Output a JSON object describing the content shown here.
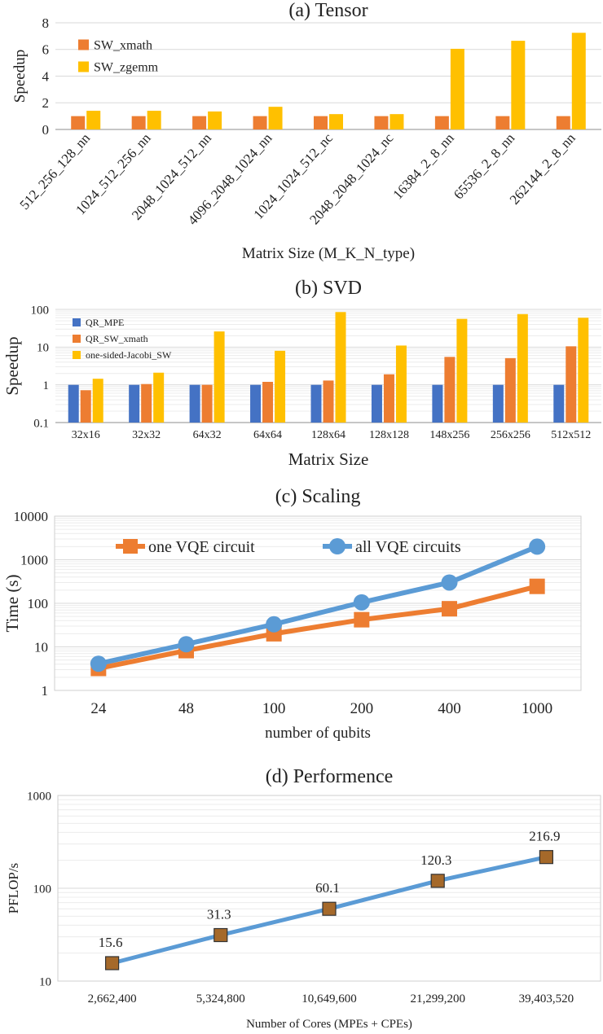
{
  "colors": {
    "orange": "#ED7D31",
    "yellow": "#FFC000",
    "blue": "#4472C4",
    "lightblue": "#5B9BD5",
    "brown": "#A5692A",
    "grid": "#D9D9D9",
    "axis": "#8C8C8C"
  },
  "chart_data": [
    {
      "type": "bar",
      "title": "(a) Tensor",
      "xlabel": "Matrix Size (M_K_N_type)",
      "ylabel": "Speedup",
      "ylim": [
        0,
        8
      ],
      "yticks": [
        "0",
        "2",
        "4",
        "6",
        "8"
      ],
      "grid": true,
      "legend_position": "top-left",
      "categories": [
        "512_256_128_nn",
        "1024_512_256_nn",
        "2048_1024_512_nn",
        "4096_2048_1024_nn",
        "1024_1024_512_nc",
        "2048_2048_1024_nc",
        "16384_2_8_nn",
        "65536_2_8_nn",
        "262144_2_8_nn"
      ],
      "series": [
        {
          "name": "SW_xmath",
          "color": "#ED7D31",
          "values": [
            1,
            1,
            1,
            1,
            1,
            1,
            1,
            1,
            1
          ]
        },
        {
          "name": "SW_zgemm",
          "color": "#FFC000",
          "values": [
            1.4,
            1.4,
            1.35,
            1.7,
            1.15,
            1.15,
            6.05,
            6.65,
            7.25
          ]
        }
      ]
    },
    {
      "type": "bar",
      "title": "(b) SVD",
      "xlabel": "Matrix Size",
      "ylabel": "Speedup",
      "scale": "log",
      "ylim": [
        0.1,
        100
      ],
      "yticks": [
        "0.1",
        "1",
        "10",
        "100"
      ],
      "grid": true,
      "legend_position": "top-left",
      "categories": [
        "32x16",
        "32x32",
        "64x32",
        "64x64",
        "128x64",
        "128x128",
        "148x256",
        "256x256",
        "512x512"
      ],
      "series": [
        {
          "name": "QR_MPE",
          "color": "#4472C4",
          "values": [
            1,
            1,
            1,
            1,
            1,
            1,
            1,
            1,
            1
          ]
        },
        {
          "name": "QR_SW_xmath",
          "color": "#ED7D31",
          "values": [
            0.72,
            1.05,
            1.0,
            1.2,
            1.3,
            1.9,
            5.5,
            5.1,
            10.5
          ]
        },
        {
          "name": "one-sided-Jacobi_SW",
          "color": "#FFC000",
          "values": [
            1.45,
            2.1,
            26,
            8,
            85,
            11,
            56,
            75,
            60
          ]
        }
      ]
    },
    {
      "type": "line",
      "title": "(c) Scaling",
      "xlabel": "number of qubits",
      "ylabel": "Time (s)",
      "scale": "log",
      "ylim": [
        1,
        10000
      ],
      "yticks": [
        "1",
        "10",
        "100",
        "1000",
        "10000"
      ],
      "grid": true,
      "legend_position": "top",
      "categories": [
        "24",
        "48",
        "100",
        "200",
        "400",
        "1000"
      ],
      "series": [
        {
          "name": "one VQE circuit",
          "color": "#ED7D31",
          "marker": "square",
          "values": [
            3.2,
            8.2,
            20,
            42,
            75,
            245
          ]
        },
        {
          "name": "all VQE circuits",
          "color": "#5B9BD5",
          "marker": "circle",
          "values": [
            4.1,
            11.5,
            33,
            105,
            300,
            2000
          ]
        }
      ]
    },
    {
      "type": "line",
      "title": "(d) Performence",
      "xlabel": "Number of Cores (MPEs + CPEs)",
      "ylabel": "PFLOP/s",
      "scale": "log",
      "ylim": [
        10,
        1000
      ],
      "yticks": [
        "10",
        "100",
        "1000"
      ],
      "grid": true,
      "categories": [
        "2,662,400",
        "5,324,800",
        "10,649,600",
        "21,299,200",
        "39,403,520"
      ],
      "series": [
        {
          "color": "#5B9BD5",
          "marker_color": "#A5692A",
          "marker": "square",
          "values": [
            15.6,
            31.3,
            60.1,
            120.3,
            216.9
          ],
          "labels": [
            "15.6",
            "31.3",
            "60.1",
            "120.3",
            "216.9"
          ]
        }
      ]
    }
  ]
}
